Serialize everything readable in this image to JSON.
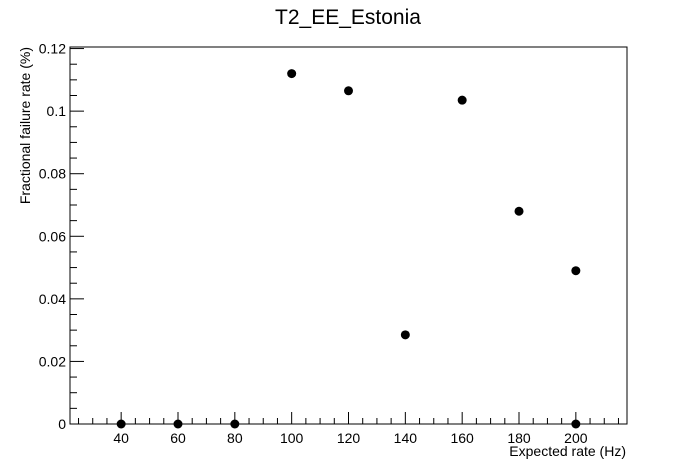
{
  "chart_data": {
    "type": "scatter",
    "title": "T2_EE_Estonia",
    "xlabel": "Expected rate (Hz)",
    "ylabel": "Fractional failure rate (%)",
    "xlim": [
      22,
      218
    ],
    "ylim": [
      0,
      0.1205
    ],
    "x_major_ticks": [
      40,
      60,
      80,
      100,
      120,
      140,
      160,
      180,
      200
    ],
    "x_minor_step": 5,
    "y_major_ticks": [
      0,
      0.02,
      0.04,
      0.06,
      0.08,
      0.1,
      0.12
    ],
    "y_tick_labels": [
      "0",
      "0.02",
      "0.04",
      "0.06",
      "0.08",
      "0.1",
      "0.12"
    ],
    "y_minor_step": 0.005,
    "grid": false,
    "legend": "none",
    "marker_color": "#000000",
    "points": [
      {
        "x": 40,
        "y": 0
      },
      {
        "x": 60,
        "y": 0
      },
      {
        "x": 80,
        "y": 0
      },
      {
        "x": 100,
        "y": 0.112
      },
      {
        "x": 120,
        "y": 0.1065
      },
      {
        "x": 140,
        "y": 0.0285
      },
      {
        "x": 160,
        "y": 0.1035
      },
      {
        "x": 180,
        "y": 0.068
      },
      {
        "x": 200,
        "y": 0.049
      },
      {
        "x": 200,
        "y": 0
      }
    ]
  }
}
